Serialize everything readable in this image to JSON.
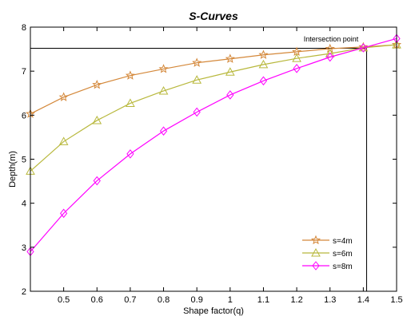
{
  "chart_data": {
    "type": "line",
    "title": "S-Curves",
    "xlabel": "Shape factor(q)",
    "ylabel": "Depth(m)",
    "xlim": [
      0.4,
      1.5
    ],
    "ylim": [
      2,
      8
    ],
    "xticks": [
      0.5,
      0.6,
      0.7,
      0.8,
      0.9,
      1.0,
      1.1,
      1.2,
      1.3,
      1.4,
      1.5
    ],
    "xtick_labels": [
      "0.5",
      "0.6",
      "0.7",
      "0.8",
      "0.9",
      "1",
      "1.1",
      "1.2",
      "1.3",
      "1.4",
      "1.5"
    ],
    "yticks": [
      2,
      3,
      4,
      5,
      6,
      7,
      8
    ],
    "ytick_labels": [
      "2",
      "3",
      "4",
      "5",
      "6",
      "7",
      "8"
    ],
    "grid": false,
    "legend_position": "bottom-right",
    "x": [
      0.4,
      0.5,
      0.6,
      0.7,
      0.8,
      0.9,
      1.0,
      1.1,
      1.2,
      1.3,
      1.4,
      1.5
    ],
    "series": [
      {
        "name": "s=4m",
        "color": "#d4883a",
        "marker": "star",
        "values": [
          6.03,
          6.41,
          6.69,
          6.9,
          7.05,
          7.19,
          7.28,
          7.37,
          7.44,
          7.51,
          7.55,
          7.6
        ]
      },
      {
        "name": "s=6m",
        "color": "#b8b83c",
        "marker": "triangle",
        "values": [
          4.73,
          5.4,
          5.88,
          6.27,
          6.55,
          6.8,
          6.98,
          7.15,
          7.29,
          7.4,
          7.53,
          7.6
        ]
      },
      {
        "name": "s=8m",
        "color": "#ff00ff",
        "marker": "diamond",
        "values": [
          2.9,
          3.77,
          4.51,
          5.12,
          5.64,
          6.07,
          6.46,
          6.78,
          7.06,
          7.32,
          7.53,
          7.74
        ]
      }
    ],
    "annotation": {
      "text": "Intersection point",
      "x": 1.41,
      "y": 7.52
    }
  }
}
